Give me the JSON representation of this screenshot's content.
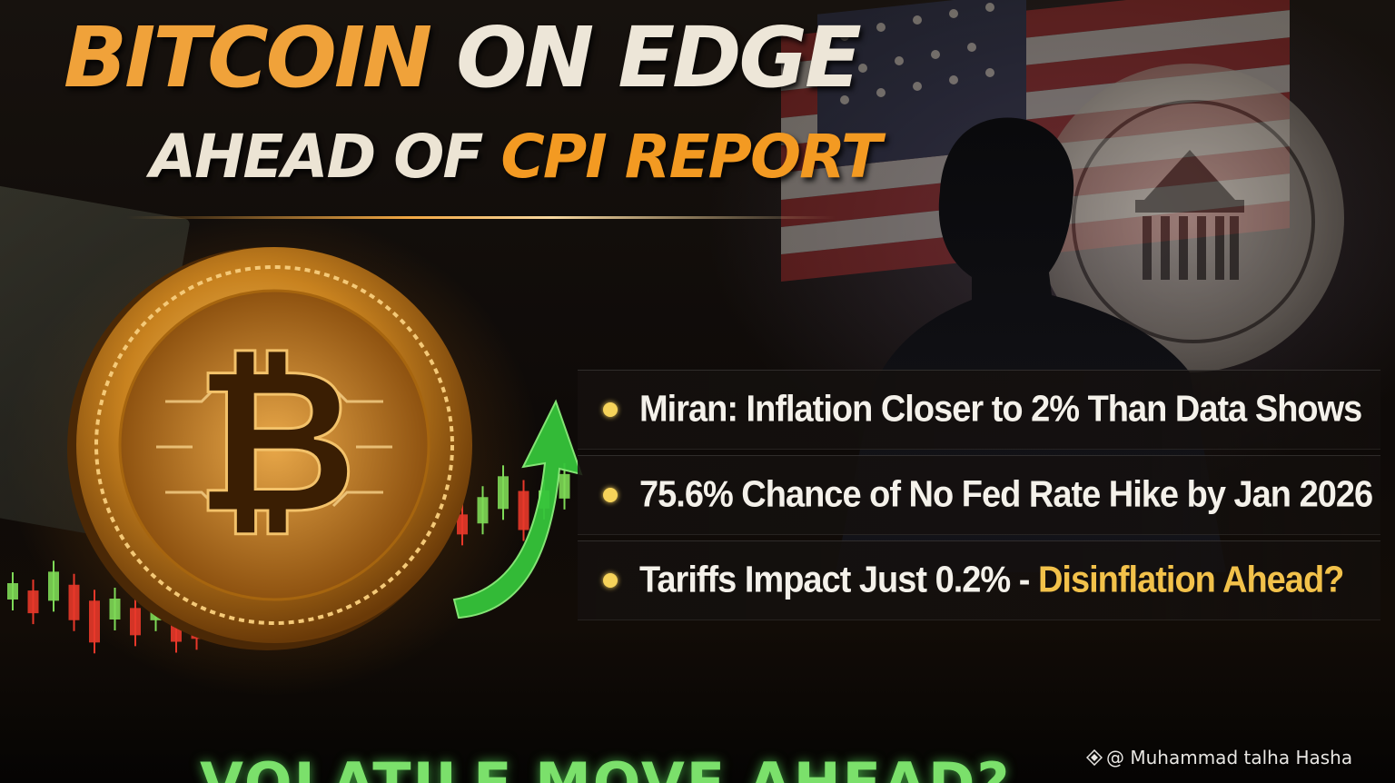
{
  "headline": {
    "title_part1": "BITCOIN",
    "title_part2": "ON EDGE",
    "subtitle_part1": "AHEAD OF",
    "subtitle_part2": "CPI REPORT"
  },
  "points": [
    {
      "text": "Miran: Inflation Closer to 2% Than Data Shows",
      "highlight": ""
    },
    {
      "text": "75.6% Chance of No Fed Rate Hike by Jan 2026",
      "highlight": ""
    },
    {
      "text": "Tariffs Impact Just 0.2% - ",
      "highlight": "Disinflation Ahead?"
    }
  ],
  "footer": {
    "banner": "VOLATILE MOVE AHEAD?"
  },
  "credit": {
    "text": "@ Muhammad talha Hasha",
    "icon": "binance-square-icon"
  },
  "imagery": {
    "coin_symbol": "₿",
    "icons": [
      "bitcoin-coin-icon",
      "up-arrow-icon",
      "federal-reserve-seal",
      "us-flag",
      "person-silhouette",
      "dollar-bill"
    ]
  },
  "colors": {
    "title_orange": "#f0a23a",
    "title_cream": "#ede6d8",
    "highlight_gold": "#f2c14a",
    "bullet_yellow": "#f6d35a",
    "candle_up": "#7ed957",
    "candle_down": "#e8382a",
    "arrow_green": "#35c43a"
  }
}
